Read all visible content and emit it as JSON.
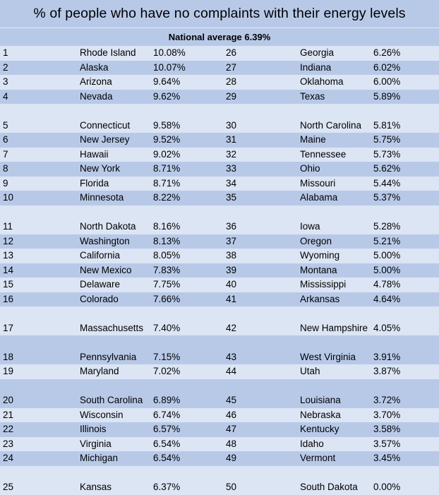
{
  "header": {
    "title": "% of people who have no complaints with their energy levels",
    "subtitle": "National average 6.39%"
  },
  "rows": [
    {
      "r1": "1",
      "s1": "Rhode Island",
      "p1": "10.08%",
      "r2": "26",
      "s2": "Georgia",
      "p2": "6.26%"
    },
    {
      "r1": "2",
      "s1": "Alaska",
      "p1": "10.07%",
      "r2": "27",
      "s2": "Indiana",
      "p2": "6.02%"
    },
    {
      "r1": "3",
      "s1": "Arizona",
      "p1": "9.64%",
      "r2": "28",
      "s2": "Oklahoma",
      "p2": "6.00%"
    },
    {
      "r1": "4",
      "s1": "Nevada",
      "p1": "9.62%",
      "r2": "29",
      "s2": "Texas",
      "p2": "5.89%"
    },
    {
      "r1": "5",
      "s1": "Connecticut",
      "p1": "9.58%",
      "r2": "30",
      "s2": "North Carolina",
      "p2": "5.81%"
    },
    {
      "r1": "6",
      "s1": "New Jersey",
      "p1": "9.52%",
      "r2": "31",
      "s2": "Maine",
      "p2": "5.75%"
    },
    {
      "r1": "7",
      "s1": "Hawaii",
      "p1": "9.02%",
      "r2": "32",
      "s2": "Tennessee",
      "p2": "5.73%"
    },
    {
      "r1": "8",
      "s1": "New York",
      "p1": "8.71%",
      "r2": "33",
      "s2": "Ohio",
      "p2": "5.62%"
    },
    {
      "r1": "9",
      "s1": "Florida",
      "p1": "8.71%",
      "r2": "34",
      "s2": "Missouri",
      "p2": "5.44%"
    },
    {
      "r1": "10",
      "s1": "Minnesota",
      "p1": "8.22%",
      "r2": "35",
      "s2": "Alabama",
      "p2": "5.37%"
    },
    {
      "r1": "11",
      "s1": "North Dakota",
      "p1": "8.16%",
      "r2": "36",
      "s2": "Iowa",
      "p2": "5.28%"
    },
    {
      "r1": "12",
      "s1": "Washington",
      "p1": "8.13%",
      "r2": "37",
      "s2": "Oregon",
      "p2": "5.21%"
    },
    {
      "r1": "13",
      "s1": "California",
      "p1": "8.05%",
      "r2": "38",
      "s2": "Wyoming",
      "p2": "5.00%"
    },
    {
      "r1": "14",
      "s1": "New Mexico",
      "p1": "7.83%",
      "r2": "39",
      "s2": "Montana",
      "p2": "5.00%"
    },
    {
      "r1": "15",
      "s1": "Delaware",
      "p1": "7.75%",
      "r2": "40",
      "s2": "Mississippi",
      "p2": "4.78%"
    },
    {
      "r1": "16",
      "s1": "Colorado",
      "p1": "7.66%",
      "r2": "41",
      "s2": "Arkansas",
      "p2": "4.64%"
    },
    {
      "r1": "17",
      "s1": "Massachusetts",
      "p1": "7.40%",
      "r2": "42",
      "s2": "New Hampshire",
      "p2": "4.05%"
    },
    {
      "r1": "18",
      "s1": "Pennsylvania",
      "p1": "7.15%",
      "r2": "43",
      "s2": "West Virginia",
      "p2": "3.91%"
    },
    {
      "r1": "19",
      "s1": "Maryland",
      "p1": "7.02%",
      "r2": "44",
      "s2": "Utah",
      "p2": "3.87%"
    },
    {
      "r1": "20",
      "s1": "South Carolina",
      "p1": "6.89%",
      "r2": "45",
      "s2": "Louisiana",
      "p2": "3.72%"
    },
    {
      "r1": "21",
      "s1": "Wisconsin",
      "p1": "6.74%",
      "r2": "46",
      "s2": "Nebraska",
      "p2": "3.70%"
    },
    {
      "r1": "22",
      "s1": "Illinois",
      "p1": "6.57%",
      "r2": "47",
      "s2": "Kentucky",
      "p2": "3.58%"
    },
    {
      "r1": "23",
      "s1": "Virginia",
      "p1": "6.54%",
      "r2": "48",
      "s2": "Idaho",
      "p2": "3.57%"
    },
    {
      "r1": "24",
      "s1": "Michigan",
      "p1": "6.54%",
      "r2": "49",
      "s2": "Vermont",
      "p2": "3.45%"
    },
    {
      "r1": "25",
      "s1": "Kansas",
      "p1": "6.37%",
      "r2": "50",
      "s2": "South Dakota",
      "p2": "0.00%"
    }
  ]
}
